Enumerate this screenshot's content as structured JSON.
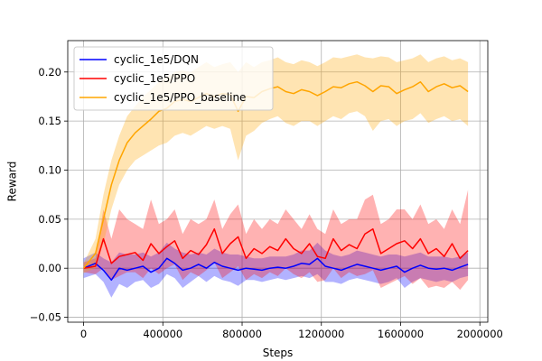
{
  "chart_data": {
    "type": "line",
    "xlabel": "Steps",
    "ylabel": "Reward",
    "xlim": [
      -80000,
      2040000
    ],
    "ylim": [
      -0.055,
      0.232
    ],
    "xticks": [
      0,
      400000,
      800000,
      1200000,
      1600000,
      2000000
    ],
    "xtick_labels": [
      "0",
      "400000",
      "800000",
      "1200000",
      "1600000",
      "2000000"
    ],
    "yticks": [
      -0.05,
      0.0,
      0.05,
      0.1,
      0.15,
      0.2
    ],
    "ytick_labels": [
      "−0.05",
      "0.00",
      "0.05",
      "0.10",
      "0.15",
      "0.20"
    ],
    "grid": true,
    "legend_position": "upper-left",
    "series": [
      {
        "name": "cyclic_1e5/DQN",
        "color": "#0000ff",
        "x": [
          0,
          60000,
          100000,
          140000,
          180000,
          220000,
          260000,
          300000,
          340000,
          380000,
          420000,
          460000,
          500000,
          540000,
          580000,
          620000,
          660000,
          700000,
          740000,
          780000,
          820000,
          860000,
          900000,
          940000,
          980000,
          1020000,
          1060000,
          1100000,
          1140000,
          1180000,
          1220000,
          1260000,
          1300000,
          1340000,
          1380000,
          1420000,
          1460000,
          1500000,
          1540000,
          1580000,
          1620000,
          1660000,
          1700000,
          1740000,
          1780000,
          1820000,
          1860000,
          1900000,
          1940000
        ],
        "y": [
          0.0,
          0.005,
          -0.002,
          -0.012,
          0.0,
          -0.002,
          0.0,
          0.002,
          -0.004,
          0.0,
          0.01,
          0.005,
          -0.002,
          0.0,
          0.004,
          0.0,
          0.006,
          0.002,
          0.0,
          -0.002,
          0.0,
          -0.001,
          -0.002,
          0.0,
          0.001,
          0.0,
          0.002,
          0.005,
          0.004,
          0.01,
          0.002,
          0.0,
          -0.002,
          0.001,
          0.004,
          0.002,
          0.0,
          -0.002,
          0.0,
          0.002,
          -0.004,
          0.0,
          0.003,
          0.0,
          -0.001,
          0.0,
          -0.002,
          0.001,
          0.004
        ],
        "lower": [
          -0.01,
          -0.006,
          -0.014,
          -0.03,
          -0.016,
          -0.02,
          -0.014,
          -0.012,
          -0.02,
          -0.016,
          -0.006,
          -0.01,
          -0.02,
          -0.014,
          -0.008,
          -0.014,
          -0.008,
          -0.012,
          -0.014,
          -0.018,
          -0.012,
          -0.012,
          -0.014,
          -0.012,
          -0.01,
          -0.012,
          -0.01,
          -0.008,
          -0.01,
          -0.006,
          -0.014,
          -0.014,
          -0.016,
          -0.012,
          -0.01,
          -0.012,
          -0.014,
          -0.016,
          -0.014,
          -0.01,
          -0.02,
          -0.014,
          -0.01,
          -0.012,
          -0.014,
          -0.012,
          -0.014,
          -0.01,
          -0.008
        ],
        "upper": [
          0.01,
          0.016,
          0.01,
          0.006,
          0.016,
          0.014,
          0.014,
          0.016,
          0.012,
          0.016,
          0.026,
          0.02,
          0.016,
          0.014,
          0.016,
          0.014,
          0.02,
          0.016,
          0.014,
          0.014,
          0.012,
          0.01,
          0.01,
          0.012,
          0.012,
          0.012,
          0.014,
          0.018,
          0.018,
          0.026,
          0.018,
          0.014,
          0.012,
          0.014,
          0.018,
          0.016,
          0.014,
          0.012,
          0.014,
          0.014,
          0.012,
          0.014,
          0.016,
          0.012,
          0.012,
          0.012,
          0.01,
          0.012,
          0.016
        ]
      },
      {
        "name": "cyclic_1e5/PPO",
        "color": "#ff0000",
        "x": [
          0,
          60000,
          100000,
          140000,
          180000,
          220000,
          260000,
          300000,
          340000,
          380000,
          420000,
          460000,
          500000,
          540000,
          580000,
          620000,
          660000,
          700000,
          740000,
          780000,
          820000,
          860000,
          900000,
          940000,
          980000,
          1020000,
          1060000,
          1100000,
          1140000,
          1180000,
          1220000,
          1260000,
          1300000,
          1340000,
          1380000,
          1420000,
          1460000,
          1500000,
          1540000,
          1580000,
          1620000,
          1660000,
          1700000,
          1740000,
          1780000,
          1820000,
          1860000,
          1900000,
          1940000
        ],
        "y": [
          0.0,
          0.002,
          0.03,
          0.005,
          0.012,
          0.014,
          0.016,
          0.008,
          0.025,
          0.015,
          0.022,
          0.028,
          0.01,
          0.018,
          0.014,
          0.024,
          0.04,
          0.015,
          0.025,
          0.032,
          0.01,
          0.02,
          0.015,
          0.022,
          0.018,
          0.03,
          0.02,
          0.015,
          0.025,
          0.012,
          0.01,
          0.03,
          0.018,
          0.024,
          0.02,
          0.035,
          0.04,
          0.015,
          0.02,
          0.025,
          0.028,
          0.02,
          0.03,
          0.015,
          0.02,
          0.012,
          0.025,
          0.01,
          0.018
        ],
        "lower": [
          -0.004,
          -0.006,
          0.0,
          -0.012,
          -0.008,
          -0.004,
          -0.004,
          -0.01,
          0.0,
          -0.006,
          0.0,
          0.004,
          -0.012,
          -0.004,
          -0.008,
          -0.002,
          0.006,
          -0.01,
          -0.004,
          0.002,
          -0.012,
          -0.006,
          -0.01,
          -0.004,
          -0.008,
          0.0,
          -0.006,
          -0.01,
          -0.004,
          -0.014,
          -0.012,
          0.0,
          -0.01,
          -0.004,
          -0.008,
          -0.006,
          -0.002,
          -0.02,
          -0.016,
          -0.012,
          -0.008,
          -0.016,
          -0.01,
          -0.02,
          -0.018,
          -0.02,
          -0.014,
          -0.022,
          -0.012
        ],
        "upper": [
          0.006,
          0.01,
          0.06,
          0.03,
          0.06,
          0.05,
          0.045,
          0.04,
          0.07,
          0.045,
          0.05,
          0.06,
          0.035,
          0.05,
          0.045,
          0.05,
          0.07,
          0.04,
          0.055,
          0.065,
          0.035,
          0.05,
          0.04,
          0.05,
          0.045,
          0.06,
          0.05,
          0.04,
          0.055,
          0.04,
          0.035,
          0.06,
          0.045,
          0.05,
          0.05,
          0.07,
          0.075,
          0.045,
          0.05,
          0.06,
          0.06,
          0.05,
          0.065,
          0.045,
          0.05,
          0.04,
          0.06,
          0.045,
          0.08
        ]
      },
      {
        "name": "cyclic_1e5/PPO_baseline",
        "color": "#ffa500",
        "x": [
          0,
          60000,
          100000,
          140000,
          180000,
          220000,
          260000,
          300000,
          340000,
          380000,
          420000,
          460000,
          500000,
          540000,
          580000,
          620000,
          660000,
          700000,
          740000,
          780000,
          820000,
          860000,
          900000,
          940000,
          980000,
          1020000,
          1060000,
          1100000,
          1140000,
          1180000,
          1220000,
          1260000,
          1300000,
          1340000,
          1380000,
          1420000,
          1460000,
          1500000,
          1540000,
          1580000,
          1620000,
          1660000,
          1700000,
          1740000,
          1780000,
          1820000,
          1860000,
          1900000,
          1940000
        ],
        "y": [
          0.0,
          0.015,
          0.05,
          0.085,
          0.11,
          0.128,
          0.138,
          0.145,
          0.152,
          0.16,
          0.163,
          0.17,
          0.172,
          0.17,
          0.174,
          0.178,
          0.175,
          0.178,
          0.177,
          0.16,
          0.175,
          0.174,
          0.18,
          0.183,
          0.185,
          0.18,
          0.178,
          0.182,
          0.18,
          0.176,
          0.18,
          0.185,
          0.184,
          0.188,
          0.19,
          0.186,
          0.18,
          0.186,
          0.185,
          0.178,
          0.182,
          0.185,
          0.19,
          0.18,
          0.185,
          0.188,
          0.184,
          0.186,
          0.18
        ],
        "lower": [
          -0.005,
          0.0,
          0.025,
          0.06,
          0.085,
          0.1,
          0.11,
          0.115,
          0.12,
          0.125,
          0.128,
          0.135,
          0.138,
          0.135,
          0.14,
          0.145,
          0.142,
          0.145,
          0.142,
          0.11,
          0.135,
          0.14,
          0.148,
          0.152,
          0.155,
          0.148,
          0.145,
          0.15,
          0.15,
          0.145,
          0.15,
          0.155,
          0.152,
          0.158,
          0.16,
          0.155,
          0.14,
          0.15,
          0.152,
          0.145,
          0.15,
          0.152,
          0.158,
          0.148,
          0.152,
          0.155,
          0.15,
          0.152,
          0.145
        ],
        "upper": [
          0.005,
          0.03,
          0.075,
          0.11,
          0.135,
          0.155,
          0.165,
          0.175,
          0.182,
          0.19,
          0.195,
          0.2,
          0.202,
          0.2,
          0.205,
          0.21,
          0.205,
          0.208,
          0.21,
          0.2,
          0.21,
          0.205,
          0.21,
          0.212,
          0.215,
          0.21,
          0.208,
          0.212,
          0.21,
          0.206,
          0.21,
          0.215,
          0.214,
          0.216,
          0.218,
          0.215,
          0.214,
          0.216,
          0.215,
          0.21,
          0.212,
          0.214,
          0.218,
          0.21,
          0.214,
          0.216,
          0.212,
          0.214,
          0.21
        ]
      }
    ]
  }
}
